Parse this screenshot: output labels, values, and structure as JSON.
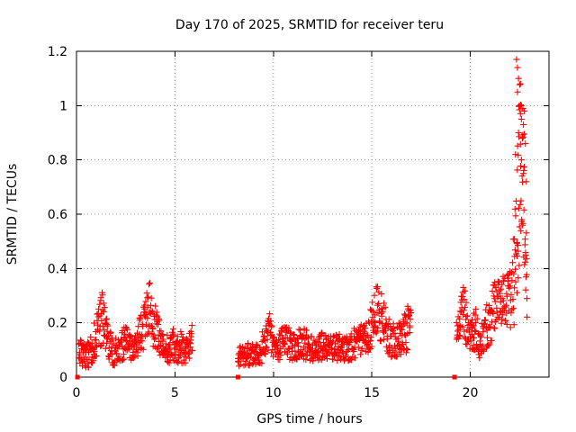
{
  "chart_data": {
    "type": "scatter",
    "title": "Day 170 of 2025, SRMTID for receiver teru",
    "xlabel": "GPS time / hours",
    "ylabel": "SRMTID / TECUs",
    "xlim": [
      0,
      24
    ],
    "ylim": [
      0,
      1.2
    ],
    "x_ticks": [
      0,
      5,
      10,
      15,
      20
    ],
    "y_ticks": [
      0,
      0.2,
      0.4,
      0.6,
      0.8,
      1.0,
      1.2
    ],
    "x_tick_labels": [
      "0",
      "5",
      "10",
      "15",
      "20"
    ],
    "y_tick_labels": [
      "0",
      "0.2",
      "0.4",
      "0.6",
      "0.8",
      "1",
      "1.2"
    ],
    "grid": true,
    "marker": "plus",
    "color": "#ff0000",
    "series": [
      {
        "name": "SRMTID",
        "segments": [
          {
            "x": [
              0.1,
              0.3,
              0.5,
              0.7,
              0.9,
              1.1,
              1.3,
              1.5,
              1.7,
              1.9,
              2.1,
              2.3,
              2.5,
              2.7,
              2.9,
              3.1,
              3.3,
              3.5,
              3.7,
              3.9,
              4.1,
              4.3,
              4.5,
              4.7,
              4.9,
              5.1,
              5.3,
              5.5,
              5.7,
              5.9
            ],
            "base": [
              0.09,
              0.1,
              0.08,
              0.09,
              0.13,
              0.18,
              0.22,
              0.16,
              0.11,
              0.09,
              0.1,
              0.12,
              0.13,
              0.11,
              0.1,
              0.14,
              0.17,
              0.2,
              0.25,
              0.2,
              0.16,
              0.13,
              0.11,
              0.1,
              0.12,
              0.1,
              0.11,
              0.1,
              0.12,
              0.13
            ],
            "spread": [
              0.05,
              0.06,
              0.05,
              0.05,
              0.07,
              0.09,
              0.1,
              0.08,
              0.06,
              0.05,
              0.05,
              0.06,
              0.06,
              0.05,
              0.05,
              0.07,
              0.08,
              0.09,
              0.12,
              0.09,
              0.08,
              0.06,
              0.05,
              0.05,
              0.06,
              0.05,
              0.06,
              0.05,
              0.06,
              0.08
            ]
          },
          {
            "x": [
              8.2,
              8.4,
              8.6,
              8.8,
              9.0,
              9.2,
              9.4,
              9.6,
              9.8,
              10.0,
              10.2,
              10.4,
              10.6,
              10.8,
              11.0,
              11.2,
              11.4,
              11.6,
              11.8,
              12.0,
              12.2,
              12.4,
              12.6,
              12.8,
              13.0,
              13.2,
              13.4,
              13.6,
              13.8,
              14.0,
              14.2,
              14.4,
              14.6,
              14.8,
              15.0,
              15.2,
              15.4,
              15.6,
              15.8,
              16.0,
              16.2,
              16.4,
              16.6,
              16.8,
              17.0
            ],
            "base": [
              0.07,
              0.08,
              0.09,
              0.08,
              0.09,
              0.1,
              0.11,
              0.14,
              0.16,
              0.12,
              0.11,
              0.12,
              0.13,
              0.12,
              0.11,
              0.12,
              0.13,
              0.12,
              0.11,
              0.1,
              0.11,
              0.12,
              0.11,
              0.1,
              0.11,
              0.12,
              0.11,
              0.1,
              0.11,
              0.12,
              0.13,
              0.14,
              0.13,
              0.15,
              0.19,
              0.24,
              0.23,
              0.19,
              0.16,
              0.14,
              0.13,
              0.14,
              0.16,
              0.18,
              0.24
            ],
            "spread": [
              0.04,
              0.04,
              0.05,
              0.04,
              0.05,
              0.05,
              0.06,
              0.07,
              0.08,
              0.06,
              0.05,
              0.06,
              0.06,
              0.06,
              0.05,
              0.06,
              0.06,
              0.06,
              0.05,
              0.05,
              0.05,
              0.06,
              0.05,
              0.05,
              0.05,
              0.06,
              0.05,
              0.05,
              0.05,
              0.06,
              0.06,
              0.07,
              0.06,
              0.07,
              0.09,
              0.1,
              0.1,
              0.09,
              0.08,
              0.07,
              0.06,
              0.07,
              0.08,
              0.09,
              0.03
            ]
          },
          {
            "x": [
              19.3,
              19.5,
              19.7,
              19.9,
              20.1,
              20.3,
              20.5,
              20.7,
              20.9,
              21.1,
              21.3,
              21.5,
              21.7,
              21.9,
              22.1,
              22.3,
              22.45,
              22.6,
              22.75,
              22.9
            ],
            "base": [
              0.2,
              0.22,
              0.25,
              0.14,
              0.15,
              0.18,
              0.12,
              0.16,
              0.2,
              0.23,
              0.26,
              0.28,
              0.27,
              0.28,
              0.3,
              0.45,
              0.7,
              0.85,
              0.6,
              0.35
            ],
            "spread": [
              0.07,
              0.08,
              0.1,
              0.06,
              0.07,
              0.08,
              0.06,
              0.08,
              0.09,
              0.1,
              0.1,
              0.1,
              0.1,
              0.1,
              0.12,
              0.25,
              0.35,
              0.3,
              0.35,
              0.15
            ]
          }
        ],
        "baseline_markers": {
          "x": [
            0.05,
            8.2,
            19.2
          ],
          "y": [
            0,
            0,
            0
          ]
        }
      }
    ]
  }
}
